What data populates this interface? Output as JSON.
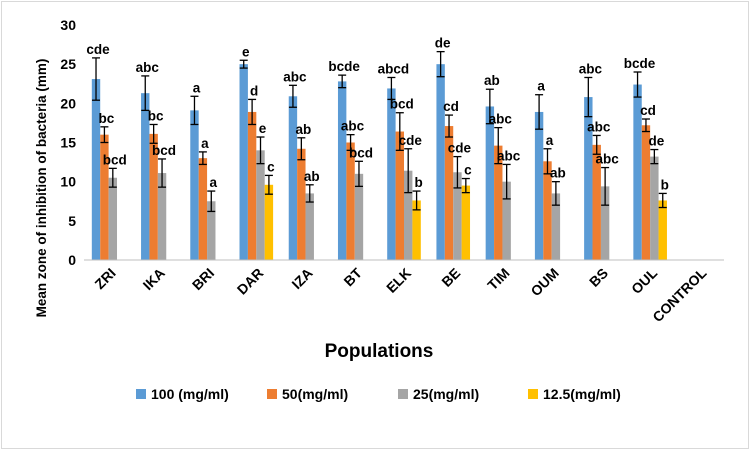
{
  "chart_data": {
    "type": "bar",
    "title": "",
    "xlabel": "Populations",
    "ylabel": "Mean zone of inhibition of bacteria (mm)",
    "ylim": [
      0,
      30
    ],
    "yticks": [
      "0",
      "5",
      "10",
      "15",
      "20",
      "25",
      "30"
    ],
    "grid": false,
    "legend_position": "bottom",
    "categories": [
      "ZRI",
      "IKA",
      "BRI",
      "DAR",
      "IZA",
      "BT",
      "ELK",
      "BE",
      "TIM",
      "OUM",
      "BS",
      "OUL",
      "CONTROL"
    ],
    "series": [
      {
        "name": "100 (mg/ml)",
        "color": "#5b9bd5",
        "values": [
          23.1,
          21.3,
          19.1,
          25.0,
          20.9,
          22.8,
          21.9,
          25.0,
          19.6,
          18.9,
          20.8,
          22.4,
          0
        ],
        "errors": [
          2.7,
          2.2,
          1.8,
          0.5,
          1.4,
          0.8,
          1.4,
          1.6,
          2.2,
          2.2,
          2.5,
          1.6,
          0
        ],
        "labels": [
          "cde",
          "abc",
          "a",
          "e",
          "abc",
          "bcde",
          "abcd",
          "de",
          "ab",
          "a",
          "abc",
          "bcde",
          ""
        ]
      },
      {
        "name": "50(mg/ml)",
        "color": "#ed7d31",
        "values": [
          16.0,
          16.1,
          13.0,
          18.9,
          14.2,
          15.0,
          16.4,
          17.1,
          14.6,
          12.6,
          14.7,
          17.2,
          0
        ],
        "errors": [
          1.0,
          1.2,
          0.8,
          1.6,
          1.4,
          1.0,
          2.4,
          1.4,
          2.3,
          1.6,
          1.2,
          0.8,
          0
        ],
        "labels": [
          "bc",
          "bc",
          "a",
          "d",
          "ab",
          "abc",
          "bcd",
          "cd",
          "abc",
          "a",
          "abc",
          "cd",
          ""
        ]
      },
      {
        "name": "25(mg/ml)",
        "color": "#a5a5a5",
        "values": [
          10.5,
          11.1,
          7.5,
          14.0,
          8.5,
          11.0,
          11.4,
          11.2,
          10.0,
          8.5,
          9.4,
          13.2,
          0
        ],
        "errors": [
          1.2,
          1.8,
          1.3,
          1.7,
          1.1,
          1.6,
          2.8,
          2.0,
          2.2,
          1.5,
          2.4,
          0.9,
          0
        ],
        "labels": [
          "bcd",
          "bcd",
          "a",
          "e",
          "ab",
          "bcd",
          "cde",
          "cde",
          "abc",
          "ab",
          "abc",
          "de",
          ""
        ]
      },
      {
        "name": "12.5(mg/ml)",
        "color": "#ffc000",
        "values": [
          0,
          0,
          0,
          9.6,
          0,
          0,
          7.6,
          9.5,
          0,
          0,
          0,
          7.6,
          0
        ],
        "errors": [
          0,
          0,
          0,
          1.2,
          0,
          0,
          1.2,
          0.9,
          0,
          0,
          0,
          0.9,
          0
        ],
        "labels": [
          "",
          "",
          "",
          "c",
          "",
          "",
          "b",
          "c",
          "",
          "",
          "",
          "b",
          ""
        ]
      }
    ]
  }
}
